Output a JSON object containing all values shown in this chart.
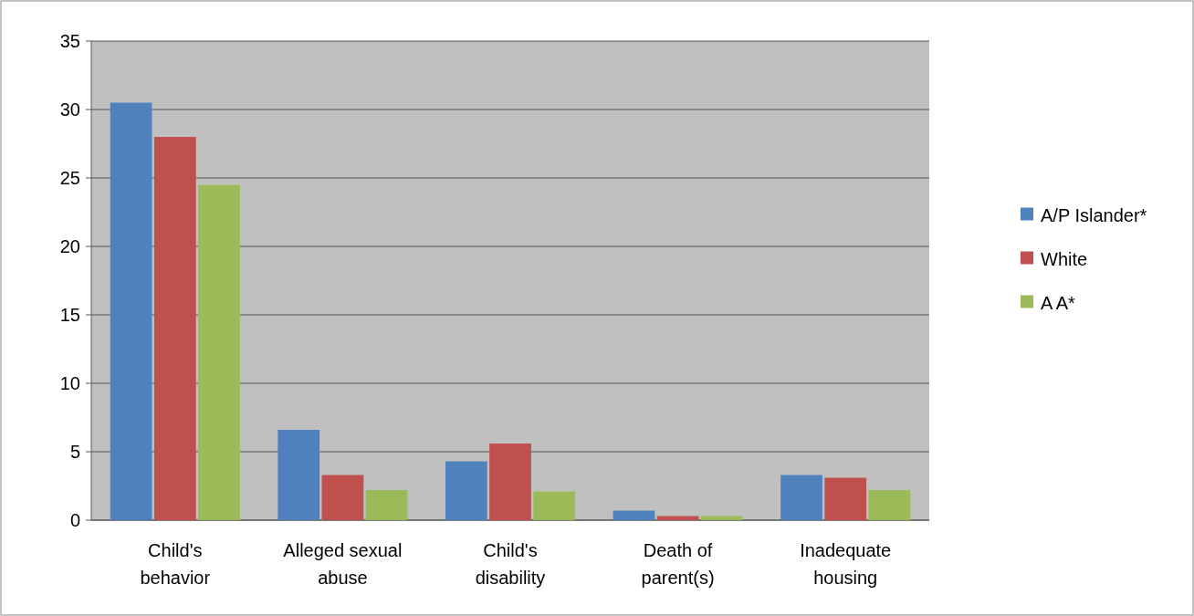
{
  "chart_data": {
    "type": "bar",
    "categories": [
      "Child's behavior",
      "Alleged sexual abuse",
      "Child's disability",
      "Death of parent(s)",
      "Inadequate housing"
    ],
    "series": [
      {
        "name": "A/P Islander*",
        "color": "#4f81bd",
        "values": [
          30.5,
          6.6,
          4.3,
          0.7,
          3.3
        ]
      },
      {
        "name": "White",
        "color": "#c0504d",
        "values": [
          28,
          3.3,
          5.6,
          0.3,
          3.1
        ]
      },
      {
        "name": "A A*",
        "color": "#9bbb59",
        "values": [
          24.5,
          2.2,
          2.1,
          0.3,
          2.2
        ]
      }
    ],
    "ylim": [
      0,
      35
    ],
    "yticks": [
      0,
      5,
      10,
      15,
      20,
      25,
      30,
      35
    ],
    "grid": "y",
    "legend": "right"
  }
}
